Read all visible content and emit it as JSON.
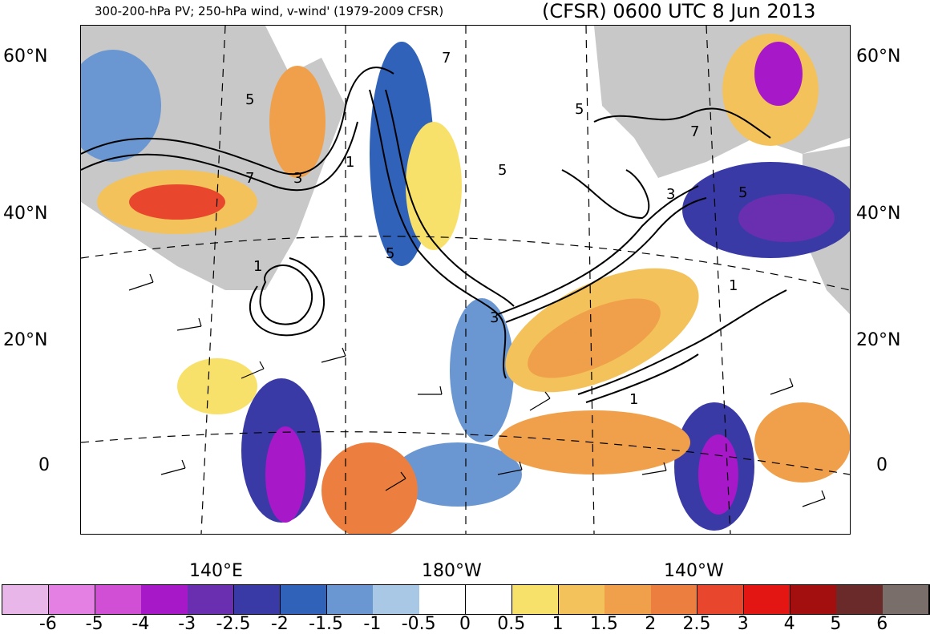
{
  "header": {
    "title_left": "300-200-hPa PV; 250-hPa wind, v-wind' (1979-2009 CFSR)",
    "title_right": "(CFSR) 0600 UTC 8 Jun 2013"
  },
  "axes": {
    "lat_left": [
      "60°N",
      "40°N",
      "20°N",
      "0"
    ],
    "lat_right": [
      "60°N",
      "40°N",
      "20°N",
      "0"
    ],
    "lon_bottom": [
      "140°E",
      "180°W",
      "140°W"
    ]
  },
  "contour_labels": [
    "5",
    "3",
    "7",
    "1",
    "1",
    "5",
    "3",
    "5",
    "7",
    "5",
    "7",
    "3",
    "1",
    "1",
    "5"
  ],
  "colorbar": {
    "labels": [
      "-6",
      "-5",
      "-4",
      "-3",
      "-2.5",
      "-2",
      "-1.5",
      "-1",
      "-0.5",
      "0",
      "0.5",
      "1",
      "1.5",
      "2",
      "2.5",
      "3",
      "4",
      "5",
      "6"
    ],
    "colors": [
      "#e8b6e8",
      "#e47fe4",
      "#d14fd4",
      "#a718c8",
      "#6a2fb0",
      "#3a3aa6",
      "#2f62b8",
      "#6a97d2",
      "#a9c8e6",
      "#ffffff",
      "#ffffff",
      "#f8e16a",
      "#f3c25b",
      "#f0a04b",
      "#ec7f3f",
      "#e8472e",
      "#e31614",
      "#a30f0f",
      "#6b2a2a",
      "#7a6e6a"
    ]
  },
  "colors": {
    "land": "#c8c8c8",
    "contour": "#000000"
  }
}
